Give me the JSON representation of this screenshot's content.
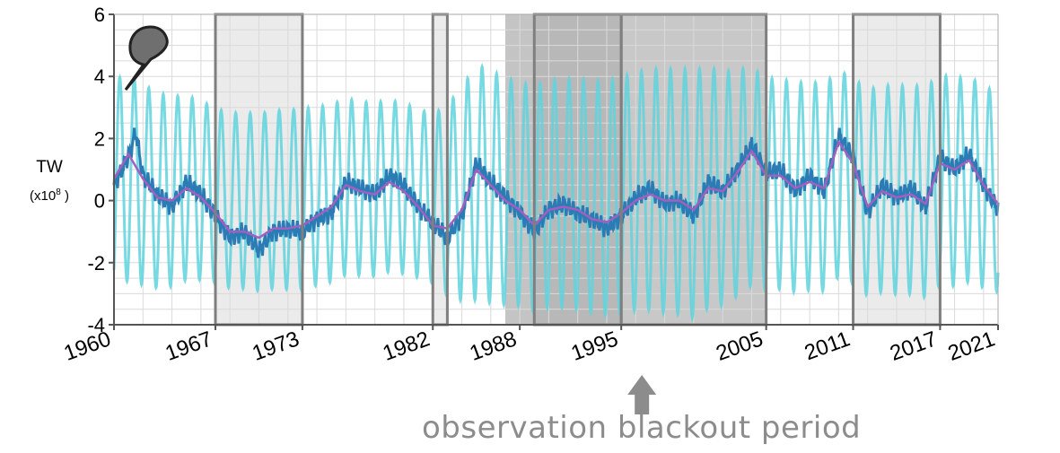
{
  "chart_data": {
    "type": "line",
    "title": "",
    "xlabel": "",
    "ylabel": "TW",
    "ylabel_base": "(x10",
    "ylabel_exp": "8",
    "ylabel_close": " )",
    "xlim": [
      1960,
      2021
    ],
    "ylim": [
      -4,
      6
    ],
    "grid": true,
    "legend": "none",
    "x_ticks": [
      "1960",
      "1967",
      "1973",
      "1982",
      "1988",
      "1995",
      "2005",
      "2011",
      "2017",
      "2021"
    ],
    "y_ticks": [
      "6",
      "4",
      "2",
      "0",
      "-2",
      "-4"
    ],
    "series": [
      {
        "color": "#5fd4dd",
        "description_points": "seasonal oscillation, ~1 cycle per year",
        "amplitude_by_year": [
          [
            1960,
            3.4
          ],
          [
            1967,
            2.8
          ],
          [
            1973,
            2.9
          ],
          [
            1982,
            2.7
          ],
          [
            1985,
            3.8
          ],
          [
            1988,
            3.6
          ],
          [
            1995,
            3.8
          ],
          [
            2000,
            4.0
          ],
          [
            2005,
            3.4
          ],
          [
            2011,
            3.3
          ],
          [
            2017,
            3.4
          ],
          [
            2021,
            3.2
          ]
        ]
      },
      {
        "color": "#2b7bb5",
        "points": [
          [
            1960,
            0.5
          ],
          [
            1961,
            1.4
          ],
          [
            1961.5,
            2.2
          ],
          [
            1962,
            0.8
          ],
          [
            1963,
            0.2
          ],
          [
            1964,
            -0.2
          ],
          [
            1965,
            0.6
          ],
          [
            1966,
            0.2
          ],
          [
            1967,
            -0.5
          ],
          [
            1968,
            -1.2
          ],
          [
            1969,
            -1.0
          ],
          [
            1970,
            -1.6
          ],
          [
            1971,
            -1.0
          ],
          [
            1972,
            -0.9
          ],
          [
            1973,
            -1.0
          ],
          [
            1974,
            -0.6
          ],
          [
            1975,
            -0.4
          ],
          [
            1976,
            0.6
          ],
          [
            1977,
            0.4
          ],
          [
            1978,
            0.2
          ],
          [
            1979,
            0.8
          ],
          [
            1980,
            0.5
          ],
          [
            1981,
            -0.2
          ],
          [
            1982,
            -0.7
          ],
          [
            1983,
            -1.2
          ],
          [
            1984,
            -0.5
          ],
          [
            1985,
            1.2
          ],
          [
            1986,
            0.6
          ],
          [
            1987,
            0.1
          ],
          [
            1988,
            -0.4
          ],
          [
            1989,
            -1.0
          ],
          [
            1990,
            -0.3
          ],
          [
            1991,
            -0.1
          ],
          [
            1992,
            -0.4
          ],
          [
            1993,
            -0.6
          ],
          [
            1994,
            -0.9
          ],
          [
            1995,
            -0.5
          ],
          [
            1996,
            0.1
          ],
          [
            1997,
            0.4
          ],
          [
            1998,
            -0.1
          ],
          [
            1999,
            0.0
          ],
          [
            2000,
            -0.5
          ],
          [
            2001,
            0.6
          ],
          [
            2002,
            0.3
          ],
          [
            2003,
            1.0
          ],
          [
            2004,
            1.8
          ],
          [
            2005,
            0.9
          ],
          [
            2006,
            1.0
          ],
          [
            2007,
            0.3
          ],
          [
            2008,
            0.8
          ],
          [
            2009,
            0.3
          ],
          [
            2010,
            2.1
          ],
          [
            2011,
            1.4
          ],
          [
            2012,
            -0.4
          ],
          [
            2013,
            0.5
          ],
          [
            2014,
            0.1
          ],
          [
            2015,
            0.4
          ],
          [
            2016,
            -0.2
          ],
          [
            2017,
            1.4
          ],
          [
            2018,
            1.0
          ],
          [
            2019,
            1.5
          ],
          [
            2020,
            0.5
          ],
          [
            2021,
            -0.3
          ]
        ]
      },
      {
        "color": "#a35fbf",
        "points": [
          [
            1960,
            0.7
          ],
          [
            1961,
            1.5
          ],
          [
            1962,
            0.7
          ],
          [
            1963,
            0.1
          ],
          [
            1964,
            0.0
          ],
          [
            1965,
            0.4
          ],
          [
            1966,
            0.1
          ],
          [
            1967,
            -0.4
          ],
          [
            1968,
            -1.0
          ],
          [
            1969,
            -1.0
          ],
          [
            1970,
            -1.2
          ],
          [
            1971,
            -0.9
          ],
          [
            1972,
            -0.9
          ],
          [
            1973,
            -0.8
          ],
          [
            1974,
            -0.5
          ],
          [
            1975,
            -0.2
          ],
          [
            1976,
            0.5
          ],
          [
            1977,
            0.3
          ],
          [
            1978,
            0.2
          ],
          [
            1979,
            0.6
          ],
          [
            1980,
            0.3
          ],
          [
            1981,
            -0.2
          ],
          [
            1982,
            -0.8
          ],
          [
            1983,
            -0.9
          ],
          [
            1984,
            -0.3
          ],
          [
            1985,
            1.0
          ],
          [
            1986,
            0.5
          ],
          [
            1987,
            0.0
          ],
          [
            1988,
            -0.3
          ],
          [
            1989,
            -0.8
          ],
          [
            1990,
            -0.3
          ],
          [
            1991,
            -0.2
          ],
          [
            1992,
            -0.3
          ],
          [
            1993,
            -0.6
          ],
          [
            1994,
            -0.7
          ],
          [
            1995,
            -0.4
          ],
          [
            1996,
            0.0
          ],
          [
            1997,
            0.2
          ],
          [
            1998,
            0.0
          ],
          [
            1999,
            0.0
          ],
          [
            2000,
            -0.3
          ],
          [
            2001,
            0.4
          ],
          [
            2002,
            0.3
          ],
          [
            2003,
            0.9
          ],
          [
            2004,
            1.6
          ],
          [
            2005,
            0.8
          ],
          [
            2006,
            0.8
          ],
          [
            2007,
            0.4
          ],
          [
            2008,
            0.6
          ],
          [
            2009,
            0.4
          ],
          [
            2010,
            1.9
          ],
          [
            2011,
            1.2
          ],
          [
            2012,
            -0.2
          ],
          [
            2013,
            0.3
          ],
          [
            2014,
            0.1
          ],
          [
            2015,
            0.2
          ],
          [
            2016,
            -0.1
          ],
          [
            2017,
            1.2
          ],
          [
            2018,
            1.0
          ],
          [
            2019,
            1.3
          ],
          [
            2020,
            0.5
          ],
          [
            2021,
            -0.1
          ]
        ]
      }
    ],
    "shaded_periods": [
      {
        "from": 1967,
        "to": 1973,
        "fill": "#ebebeb",
        "outline": true
      },
      {
        "from": 1982,
        "to": 1983,
        "fill": "#ebebeb",
        "outline": true
      },
      {
        "from": 1987,
        "to": 1989,
        "fill": "#c4c4c4",
        "outline": false
      },
      {
        "from": 1989,
        "to": 1995,
        "fill": "#b8b8b8",
        "outline": true
      },
      {
        "from": 1995,
        "to": 2005,
        "fill": "#c8c8c8",
        "outline": true
      },
      {
        "from": 2011,
        "to": 2017,
        "fill": "#ebebeb",
        "outline": true
      }
    ]
  },
  "annotation": {
    "text": "observation blackout period",
    "arrow_year": 1995,
    "color": "#8c8c8c"
  },
  "icons": {
    "pin": "map-pin-icon"
  }
}
